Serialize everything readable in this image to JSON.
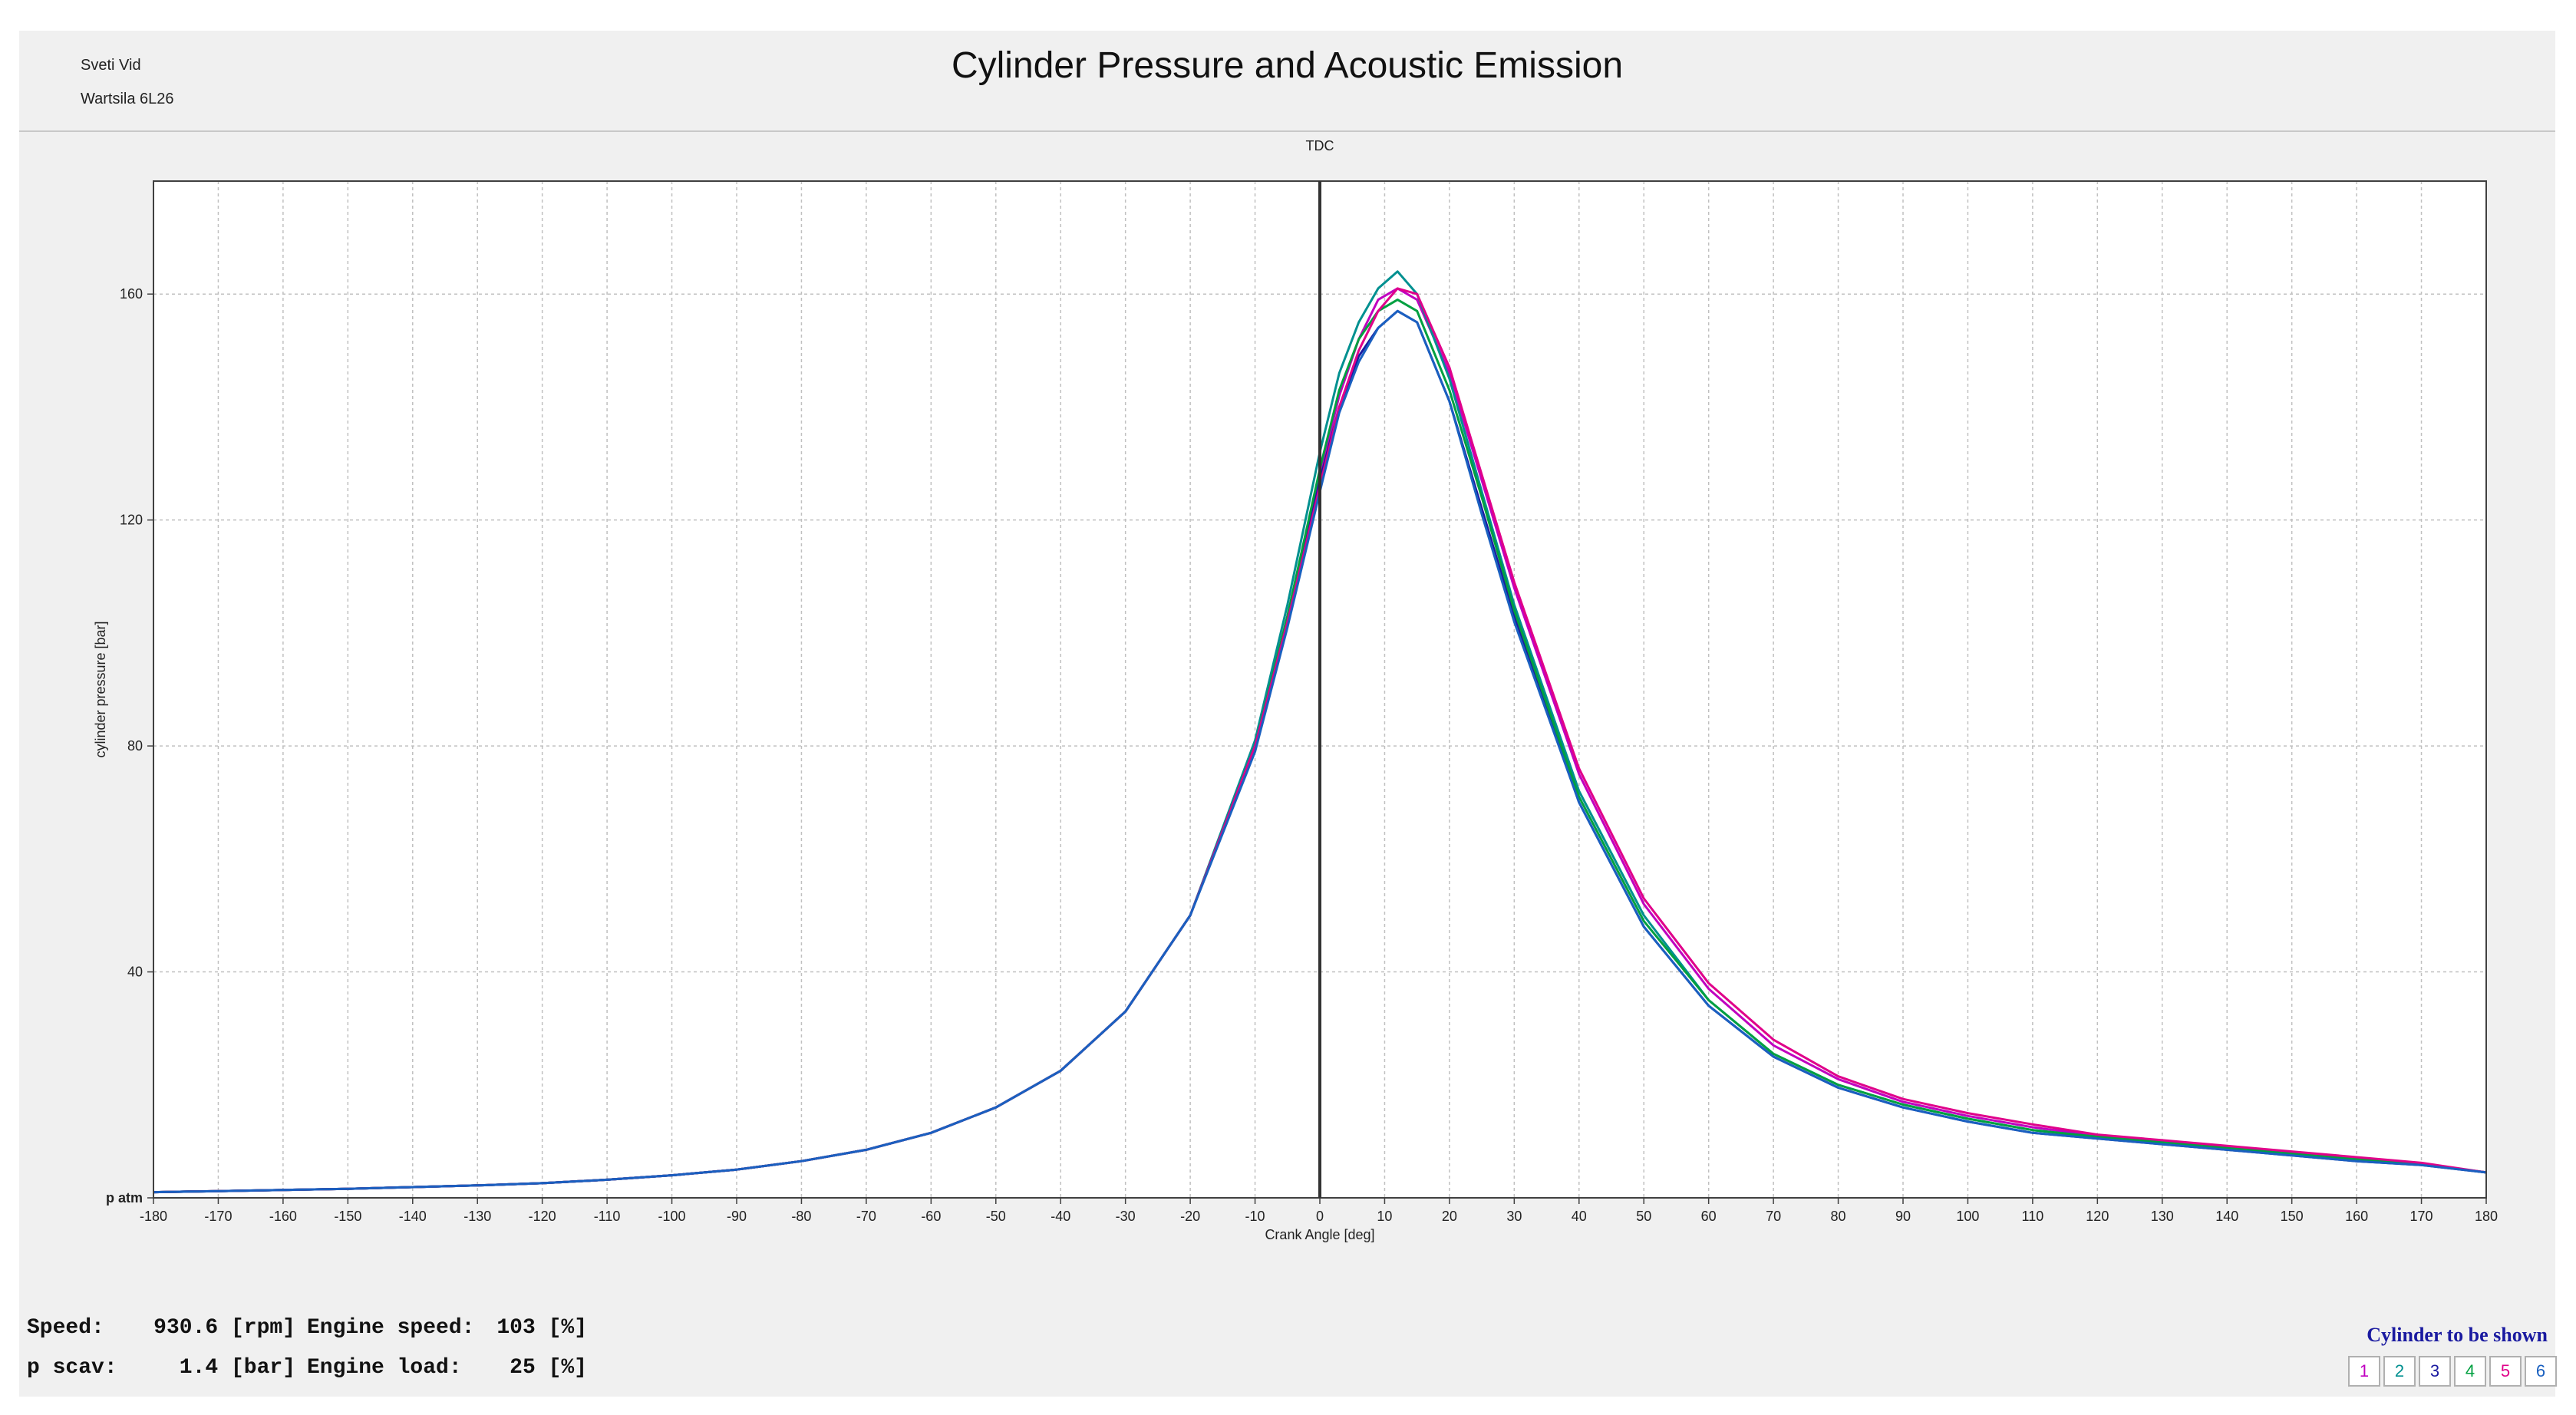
{
  "header": {
    "site": "Sveti Vid",
    "engine": "Wartsila 6L26",
    "title": "Cylinder Pressure and Acoustic Emission"
  },
  "stats": {
    "speed_label": "Speed:",
    "speed_value": "930.6 [rpm]",
    "engine_speed_label": "Engine speed:",
    "engine_speed_value": "103 [%]",
    "pscav_label": "p scav:",
    "pscav_value": "1.4 [bar]",
    "engine_load_label": "Engine load:",
    "engine_load_value": "25 [%]"
  },
  "cylinder_selector": {
    "title": "Cylinder to be shown",
    "buttons": [
      {
        "label": "1",
        "color": "#c000c0"
      },
      {
        "label": "2",
        "color": "#009090"
      },
      {
        "label": "3",
        "color": "#1a1aa0"
      },
      {
        "label": "4",
        "color": "#00a040"
      },
      {
        "label": "5",
        "color": "#e0008a"
      },
      {
        "label": "6",
        "color": "#1a60c0"
      }
    ]
  },
  "chart_data": {
    "type": "line",
    "title": "Cylinder Pressure and Acoustic Emission",
    "xlabel": "Crank Angle [deg]",
    "ylabel": "cylinder pressure [bar]",
    "xlim": [
      -180,
      180
    ],
    "ylim": [
      0,
      180
    ],
    "xticks": [
      -180,
      -170,
      -160,
      -150,
      -140,
      -130,
      -120,
      -110,
      -100,
      -90,
      -80,
      -70,
      -60,
      -50,
      -40,
      -30,
      -20,
      -10,
      0,
      10,
      20,
      30,
      40,
      50,
      60,
      70,
      80,
      90,
      100,
      110,
      120,
      130,
      140,
      150,
      160,
      170,
      180
    ],
    "yticks": [
      {
        "value": 0,
        "label": "p atm"
      },
      {
        "value": 40,
        "label": "40"
      },
      {
        "value": 80,
        "label": "80"
      },
      {
        "value": 120,
        "label": "120"
      },
      {
        "value": 160,
        "label": "160"
      }
    ],
    "vline": {
      "x": 0,
      "label": "TDC"
    },
    "grid": true,
    "x": [
      -180,
      -170,
      -160,
      -150,
      -140,
      -130,
      -120,
      -110,
      -100,
      -90,
      -80,
      -70,
      -60,
      -50,
      -40,
      -30,
      -20,
      -10,
      -5,
      0,
      3,
      6,
      9,
      12,
      15,
      20,
      25,
      30,
      40,
      50,
      60,
      70,
      80,
      90,
      100,
      110,
      120,
      130,
      140,
      150,
      160,
      170,
      180
    ],
    "series": [
      {
        "name": "1",
        "color": "#c000c0",
        "values": [
          1,
          1.2,
          1.4,
          1.6,
          1.9,
          2.2,
          2.6,
          3.2,
          4,
          5,
          6.5,
          8.5,
          11.5,
          16,
          22.5,
          33,
          50,
          80,
          103,
          128,
          142,
          152,
          159,
          161,
          159,
          146,
          127,
          108,
          75,
          52,
          37,
          27,
          21,
          17,
          14.5,
          12.5,
          11,
          10,
          9,
          8,
          7,
          6,
          4.5
        ]
      },
      {
        "name": "2",
        "color": "#009090",
        "values": [
          1,
          1.2,
          1.4,
          1.6,
          1.9,
          2.2,
          2.6,
          3.2,
          4,
          5,
          6.5,
          8.5,
          11.5,
          16,
          22.5,
          33,
          50,
          81,
          105,
          132,
          146,
          155,
          161,
          164,
          160,
          145,
          125,
          105,
          72,
          50,
          35,
          25.5,
          20,
          16.5,
          14,
          12,
          10.8,
          9.8,
          8.8,
          7.8,
          6.8,
          6,
          4.5
        ]
      },
      {
        "name": "3",
        "color": "#1a1aa0",
        "values": [
          1,
          1.2,
          1.4,
          1.6,
          1.9,
          2.2,
          2.6,
          3.2,
          4,
          5,
          6.5,
          8.5,
          11.5,
          16,
          22.5,
          33,
          50,
          80,
          102,
          127,
          140,
          149,
          154,
          157,
          155,
          141,
          122,
          103,
          70,
          48,
          34,
          25,
          19.5,
          16,
          13.5,
          11.5,
          10.5,
          9.5,
          8.5,
          7.5,
          6.5,
          5.8,
          4.5
        ]
      },
      {
        "name": "4",
        "color": "#00a040",
        "values": [
          1,
          1.2,
          1.4,
          1.6,
          1.9,
          2.2,
          2.6,
          3.2,
          4,
          5,
          6.5,
          8.5,
          11.5,
          16,
          22.5,
          33,
          50,
          80,
          103,
          129,
          143,
          152,
          157,
          159,
          157,
          143,
          124,
          104,
          71,
          49,
          35,
          25.5,
          20,
          16.5,
          14,
          12,
          10.8,
          9.8,
          8.8,
          7.8,
          6.8,
          6,
          4.5
        ]
      },
      {
        "name": "5",
        "color": "#e0008a",
        "values": [
          1,
          1.2,
          1.4,
          1.6,
          1.9,
          2.2,
          2.6,
          3.2,
          4,
          5,
          6.5,
          8.5,
          11.5,
          16,
          22.5,
          33,
          50,
          80,
          102,
          126,
          140,
          150,
          157,
          161,
          160,
          147,
          128,
          109,
          76,
          53,
          38,
          28,
          21.5,
          17.5,
          15,
          13,
          11.2,
          10.2,
          9.2,
          8.2,
          7.2,
          6.2,
          4.5
        ]
      },
      {
        "name": "6",
        "color": "#1a60c0",
        "values": [
          1,
          1.2,
          1.4,
          1.6,
          1.9,
          2.2,
          2.6,
          3.2,
          4,
          5,
          6.5,
          8.5,
          11.5,
          16,
          22.5,
          33,
          50,
          79,
          101,
          125,
          139,
          148,
          154,
          157,
          155,
          141,
          121,
          102,
          70,
          48,
          34,
          25,
          19.5,
          16,
          13.5,
          11.5,
          10.5,
          9.5,
          8.5,
          7.5,
          6.5,
          5.8,
          4.5
        ]
      }
    ]
  }
}
